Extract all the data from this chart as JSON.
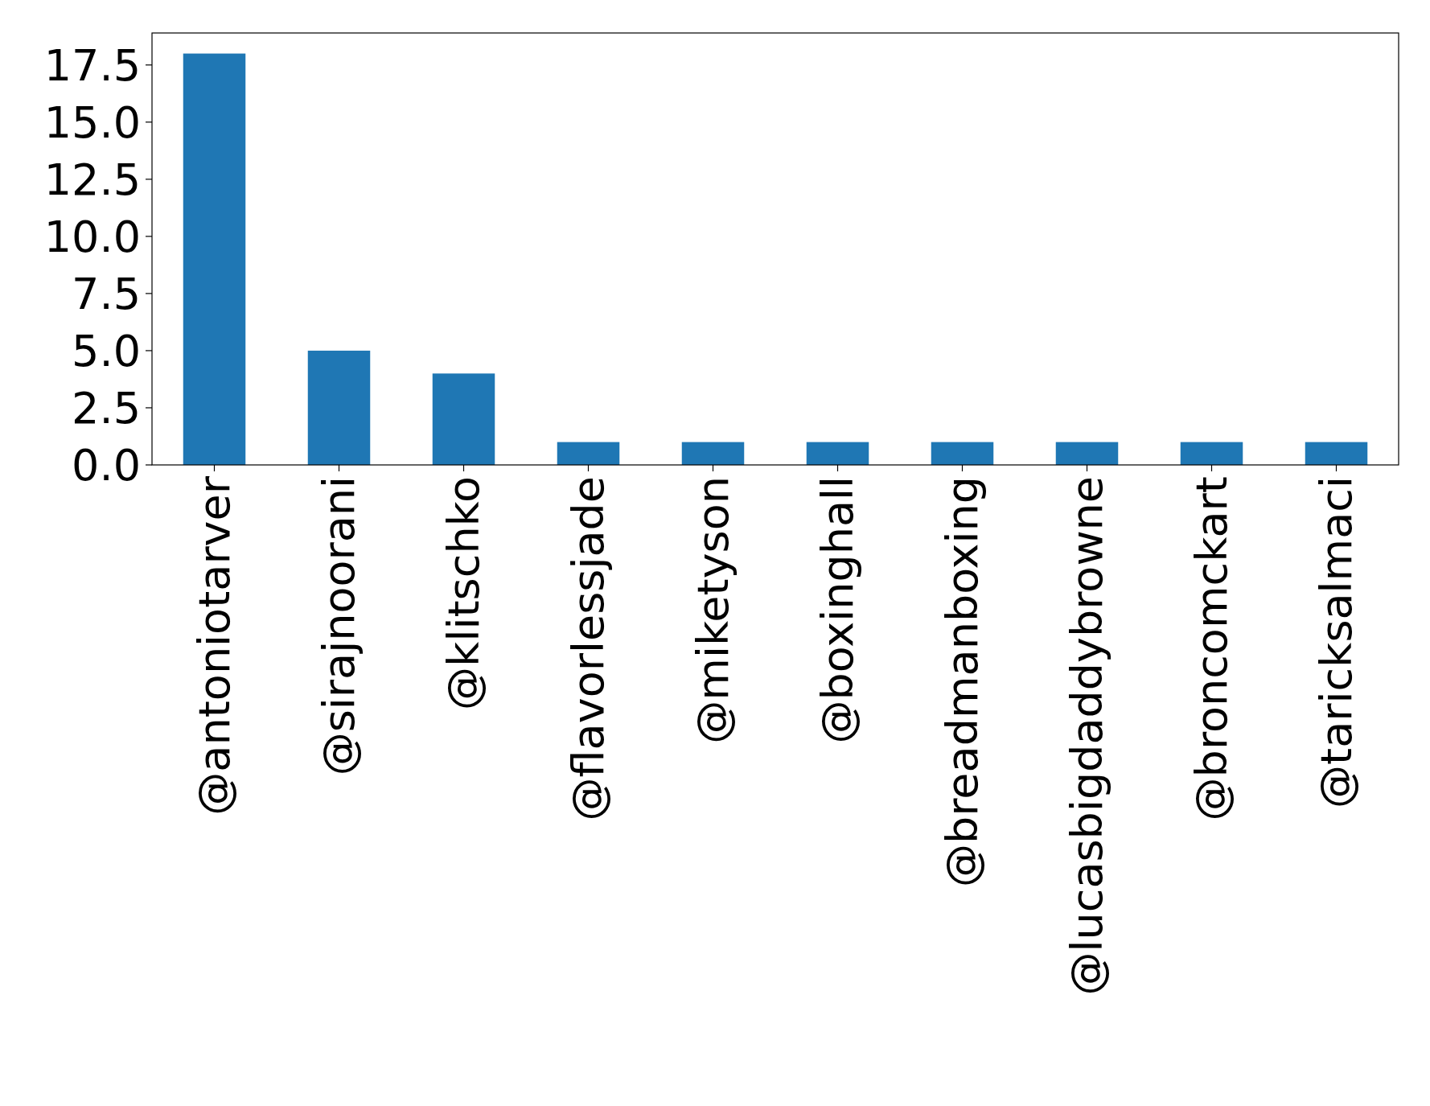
{
  "chart_data": {
    "type": "bar",
    "categories": [
      "@antoniotarver",
      "@sirajnoorani",
      "@klitschko",
      "@flavorlessjade",
      "@miketyson",
      "@boxinghall",
      "@breadmanboxing",
      "@lucasbigdaddybrowne",
      "@broncomckart",
      "@taricksalmaci"
    ],
    "values": [
      18,
      5,
      4,
      1,
      1,
      1,
      1,
      1,
      1,
      1
    ],
    "color": "#1f77b4",
    "ylim": [
      0,
      18.9
    ],
    "yticks": [
      {
        "value": 0,
        "label": "0.0"
      },
      {
        "value": 2.5,
        "label": "2.5"
      },
      {
        "value": 5,
        "label": "5.0"
      },
      {
        "value": 7.5,
        "label": "7.5"
      },
      {
        "value": 10,
        "label": "10.0"
      },
      {
        "value": 12.5,
        "label": "12.5"
      },
      {
        "value": 15,
        "label": "15.0"
      },
      {
        "value": 17.5,
        "label": "17.5"
      }
    ],
    "grid": false
  }
}
